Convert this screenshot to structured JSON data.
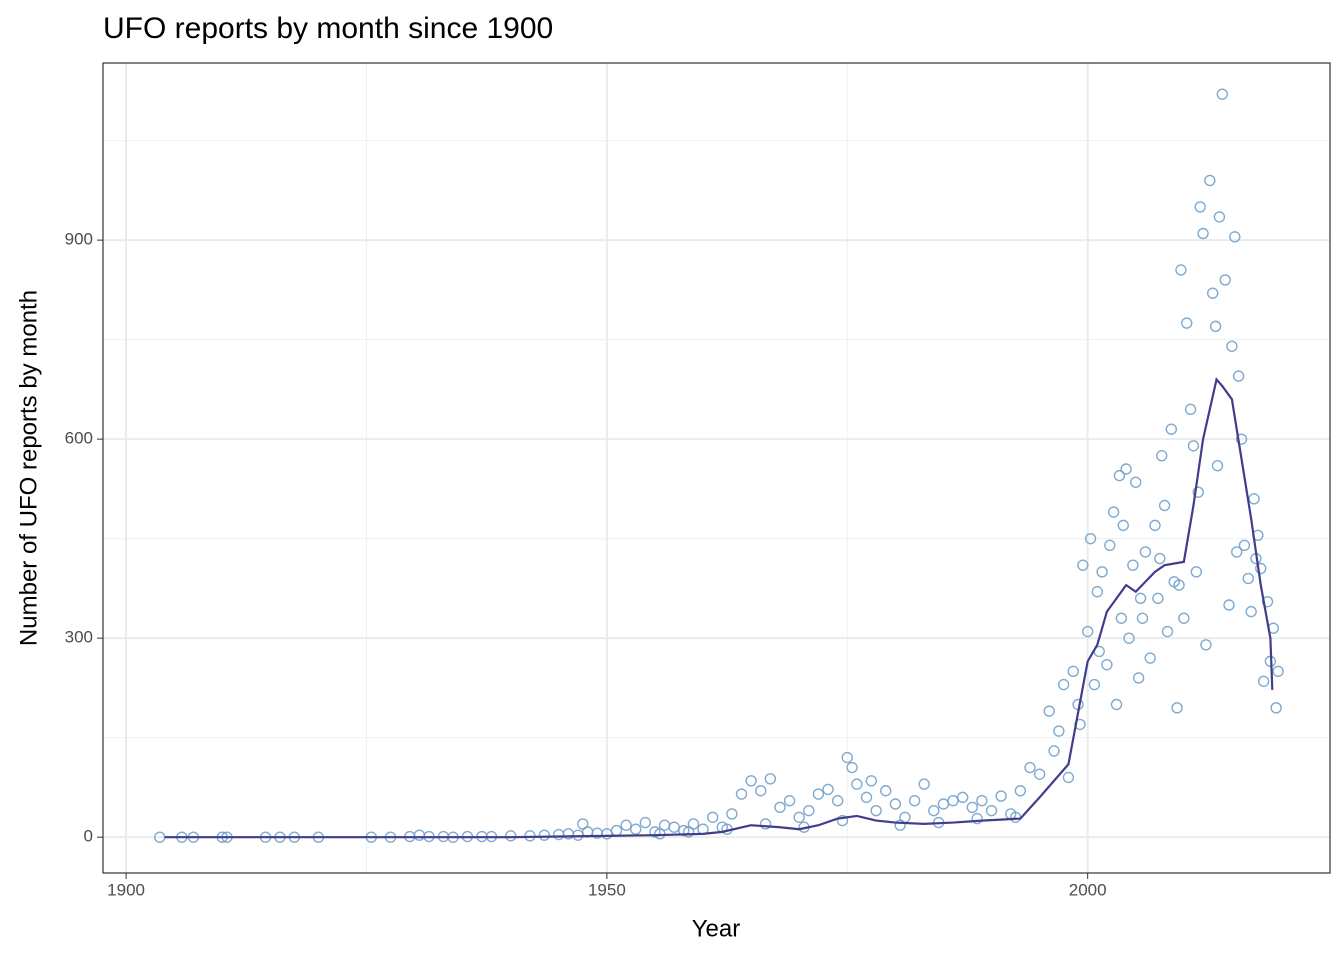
{
  "chart_data": {
    "type": "scatter",
    "title": "UFO reports by month since 1900",
    "x_label": "Year",
    "y_label": "Number of UFO reports by month",
    "xlim": [
      1897.6,
      2025.2
    ],
    "xticks": [
      1900,
      1950,
      2000
    ],
    "x_minor_grid": [
      1925,
      1975
    ],
    "ylim": [
      -54,
      1167
    ],
    "yticks": [
      0,
      300,
      600,
      900
    ],
    "y_minor_grid": [
      150,
      450,
      750,
      1050
    ],
    "grid": true,
    "series": [
      {
        "type": "scatter",
        "color": "#6a9bc7",
        "x": [
          1903.5,
          1905.8,
          1907,
          1910,
          1910.5,
          1914.5,
          1916,
          1917.5,
          1920,
          1925.5,
          1927.5,
          1929.5,
          1930.5,
          1931.5,
          1933,
          1934,
          1935.5,
          1937,
          1938,
          1940,
          1942,
          1943.5,
          1945,
          1946,
          1947,
          1947.5,
          1948,
          1949,
          1950,
          1951,
          1952,
          1953,
          1954,
          1955,
          1956,
          1957,
          1958,
          1959,
          1960,
          1961,
          1962,
          1963,
          1964,
          1965,
          1966,
          1967,
          1968,
          1969,
          1970,
          1971,
          1972,
          1973,
          1974,
          1975,
          1975.5,
          1976,
          1977,
          1977.5,
          1978,
          1979,
          1980,
          1981,
          1982,
          1983,
          1984,
          1985,
          1986,
          1987,
          1988,
          1989,
          1990,
          1991,
          1992,
          1993,
          1994,
          1995,
          1996,
          1996.5,
          1997,
          1997.5,
          1998,
          1998.5,
          1999,
          1999.5,
          2000,
          2000.3,
          2000.7,
          2001,
          2001.5,
          2002,
          2002.3,
          2002.7,
          2003,
          2003.3,
          2003.7,
          2004,
          2004.3,
          2004.7,
          2005,
          2005.3,
          2005.7,
          2006,
          2006.5,
          2007,
          2007.3,
          2007.7,
          2008,
          2008.3,
          2008.7,
          2009,
          2009.3,
          2009.7,
          2010,
          2010.3,
          2010.7,
          2011,
          2011.3,
          2011.7,
          2012,
          2012.3,
          2012.7,
          2013,
          2013.3,
          2013.7,
          2014,
          2014.3,
          2014.7,
          2015,
          2015.3,
          2015.7,
          2016,
          2016.3,
          2016.7,
          2017,
          2017.3,
          2017.7,
          2018,
          2018.3,
          2018.7,
          2019,
          2019.3,
          2019.6,
          2019.8,
          1955.5,
          1958.5,
          1962.5,
          1966.5,
          1970.5,
          1974.5,
          1980.5,
          1984.5,
          1988.5,
          1992.5,
          1999.2,
          2001.2,
          2003.5,
          2005.5,
          2007.5,
          2009.5,
          2011.5,
          2013.5,
          2015.5,
          2017.5
        ],
        "values": [
          0,
          0,
          0,
          0,
          0,
          0,
          0,
          0,
          0,
          0,
          0,
          1,
          3,
          1,
          1,
          0,
          1,
          1,
          1,
          2,
          2,
          3,
          4,
          5,
          3,
          20,
          8,
          6,
          5,
          10,
          18,
          12,
          22,
          8,
          18,
          15,
          10,
          20,
          12,
          30,
          15,
          35,
          65,
          85,
          70,
          88,
          45,
          55,
          30,
          40,
          65,
          72,
          55,
          120,
          105,
          80,
          60,
          85,
          40,
          70,
          50,
          30,
          55,
          80,
          40,
          50,
          55,
          60,
          45,
          55,
          40,
          62,
          35,
          70,
          105,
          95,
          190,
          130,
          160,
          230,
          90,
          250,
          200,
          410,
          310,
          450,
          230,
          370,
          400,
          260,
          440,
          490,
          200,
          545,
          470,
          555,
          300,
          410,
          535,
          240,
          330,
          430,
          270,
          470,
          360,
          575,
          500,
          310,
          615,
          385,
          195,
          855,
          330,
          775,
          645,
          590,
          400,
          950,
          910,
          290,
          990,
          820,
          770,
          935,
          1120,
          840,
          350,
          740,
          905,
          695,
          600,
          440,
          390,
          340,
          510,
          455,
          405,
          235,
          355,
          265,
          315,
          195,
          250,
          5,
          8,
          12,
          20,
          15,
          25,
          18,
          22,
          28,
          30,
          170,
          280,
          330,
          360,
          420,
          380,
          520,
          560,
          430,
          420
        ]
      },
      {
        "type": "line",
        "color": "#413c8c",
        "x": [
          1904,
          1910,
          1920,
          1930,
          1940,
          1945,
          1950,
          1955,
          1960,
          1962,
          1965,
          1968,
          1970,
          1972,
          1974,
          1976,
          1978,
          1980,
          1983,
          1986,
          1989,
          1993,
          1995,
          1998,
          2000,
          2001,
          2002,
          2004,
          2005,
          2007,
          2008,
          2010,
          2011,
          2012,
          2013.4,
          2014,
          2015,
          2016,
          2017,
          2018,
          2019,
          2019.2
        ],
        "values": [
          0,
          0,
          0,
          0,
          0,
          1,
          2,
          3,
          5,
          8,
          18,
          15,
          12,
          18,
          28,
          32,
          25,
          22,
          20,
          22,
          25,
          28,
          60,
          110,
          265,
          290,
          340,
          380,
          370,
          400,
          410,
          415,
          500,
          600,
          690,
          680,
          660,
          570,
          480,
          380,
          300,
          222
        ]
      }
    ]
  }
}
